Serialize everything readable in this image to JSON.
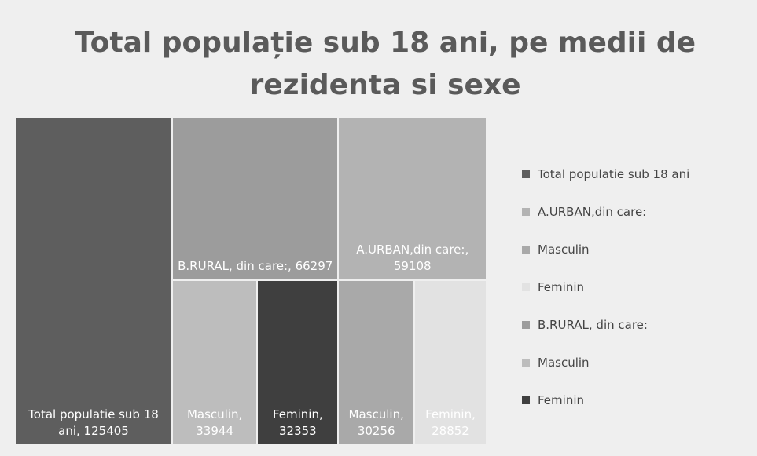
{
  "chart_data": {
    "type": "treemap",
    "title": "Total populație sub 18 ani, pe medii de rezidenta si sexe",
    "items": [
      {
        "name": "Total populatie sub 18 ani",
        "value": 125405,
        "value_label": "Total populatie sub 18 ani, 125405",
        "color": "#5e5e5e",
        "children": []
      },
      {
        "name": "A.URBAN,din care:",
        "value": 59108,
        "value_label": "A.URBAN,din care:, 59108",
        "color": "#b3b3b3",
        "children": [
          {
            "name": "Masculin",
            "value": 30256,
            "value_label": "Masculin, 30256",
            "color": "#a9a9a9"
          },
          {
            "name": "Feminin",
            "value": 28852,
            "value_label": "Feminin, 28852",
            "color": "#e2e2e2"
          }
        ]
      },
      {
        "name": "B.RURAL, din care:",
        "value": 66297,
        "value_label": "B.RURAL, din care:, 66297",
        "color": "#9c9c9c",
        "children": [
          {
            "name": "Masculin",
            "value": 33944,
            "value_label": "Masculin, 33944",
            "color": "#bdbdbd"
          },
          {
            "name": "Feminin",
            "value": 32353,
            "value_label": "Feminin, 32353",
            "color": "#3f3f3f"
          }
        ]
      }
    ],
    "legend": "right"
  }
}
